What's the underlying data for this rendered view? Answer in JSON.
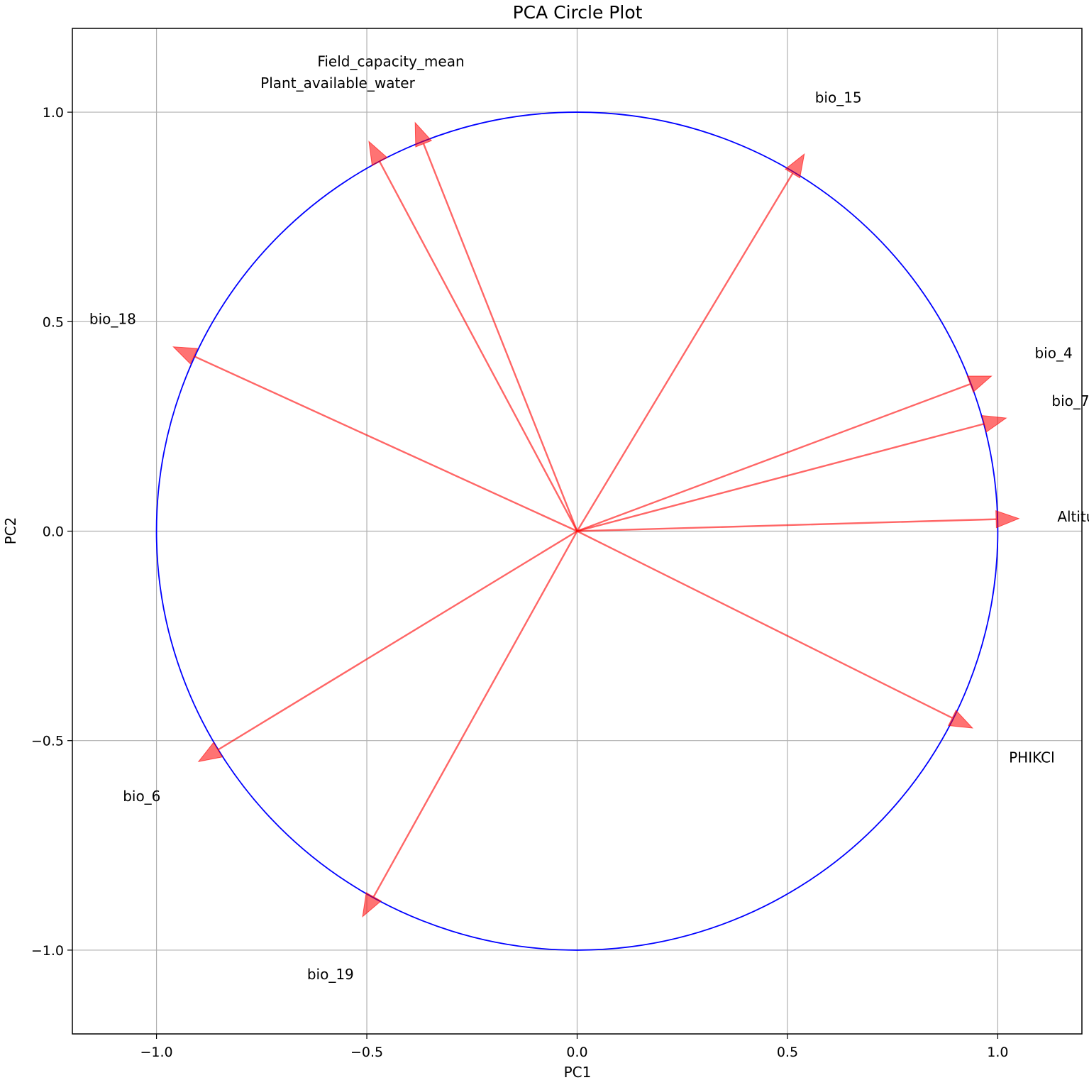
{
  "chart_data": {
    "type": "scatter",
    "title": "PCA Circle Plot",
    "xlabel": "PC1",
    "ylabel": "PC2",
    "xlim": [
      -1.2,
      1.2
    ],
    "ylim": [
      -1.2,
      1.2
    ],
    "xticks": [
      -1.0,
      -0.5,
      0.0,
      0.5,
      1.0
    ],
    "yticks": [
      -1.0,
      -0.5,
      0.0,
      0.5,
      1.0
    ],
    "xtick_labels": [
      "−1.0",
      "−0.5",
      "0.0",
      "0.5",
      "1.0"
    ],
    "ytick_labels": [
      "−1.0",
      "−0.5",
      "0.0",
      "0.5",
      "1.0"
    ],
    "grid": true,
    "unit_circle": {
      "radius": 1.0,
      "color": "#0000ff"
    },
    "arrow_color": "#ff0000",
    "vectors": [
      {
        "name": "Field_capacity_mean",
        "x": -0.385,
        "y": 0.975
      },
      {
        "name": "Plant_available_water",
        "x": -0.495,
        "y": 0.93
      },
      {
        "name": "bio_15",
        "x": 0.54,
        "y": 0.9
      },
      {
        "name": "bio_18",
        "x": -0.96,
        "y": 0.44
      },
      {
        "name": "bio_4",
        "x": 0.985,
        "y": 0.37
      },
      {
        "name": "bio_7",
        "x": 1.02,
        "y": 0.27
      },
      {
        "name": "Altitude",
        "x": 1.05,
        "y": 0.03
      },
      {
        "name": "PHIKCl",
        "x": 0.94,
        "y": -0.47
      },
      {
        "name": "bio_6",
        "x": -0.9,
        "y": -0.55
      },
      {
        "name": "bio_19",
        "x": -0.51,
        "y": -0.92
      }
    ]
  }
}
